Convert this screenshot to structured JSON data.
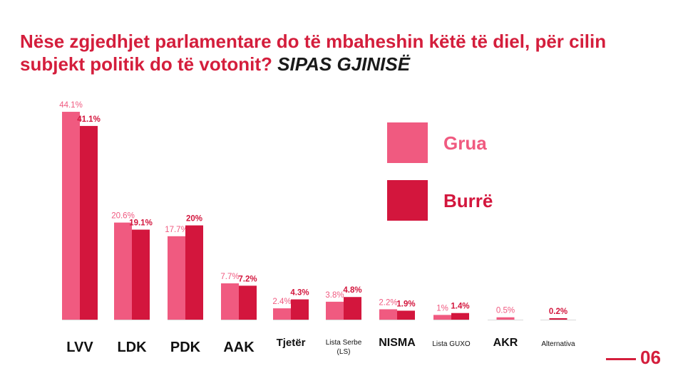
{
  "title_main": "Nëse zgjedhjet parlamentare do të mbaheshin këtë të diel, për cilin subjekt politik do të votonit?",
  "title_sub": "SIPAS GJINISË",
  "page_number": "06",
  "colors": {
    "grua": "#f05a80",
    "burre": "#d3163d",
    "title": "#d41e3c"
  },
  "chart_data": {
    "type": "bar",
    "title": "Nëse zgjedhjet parlamentare do të mbaheshin këtë të diel, për cilin subjekt politik do të votonit? SIPAS GJINISË",
    "categories": [
      "LVV",
      "LDK",
      "PDK",
      "AAK",
      "Tjetër",
      "Lista Serbe (LS)",
      "NISMA",
      "Lista GUXO",
      "AKR",
      "Alternativa"
    ],
    "series": [
      {
        "name": "Grua",
        "values": [
          44.1,
          20.6,
          17.7,
          7.7,
          2.4,
          3.8,
          2.2,
          1,
          0.5,
          null
        ]
      },
      {
        "name": "Burrë",
        "values": [
          41.1,
          19.1,
          20,
          7.2,
          4.3,
          4.8,
          1.9,
          1.4,
          null,
          0.2
        ]
      }
    ],
    "value_labels": [
      [
        "44.1%",
        "20.6%",
        "17.7%",
        "7.7%",
        "2.4%",
        "3.8%",
        "2.2%",
        "1%",
        "0.5%",
        null
      ],
      [
        "41.1%",
        "19.1%",
        "20%",
        "7.2%",
        "4.3%",
        "4.8%",
        "1.9%",
        "1.4%",
        null,
        "0.2%"
      ]
    ],
    "legend": [
      "Grua",
      "Burrë"
    ],
    "legend_position": "top-right",
    "ylim": [
      0,
      45
    ],
    "grid": false
  }
}
